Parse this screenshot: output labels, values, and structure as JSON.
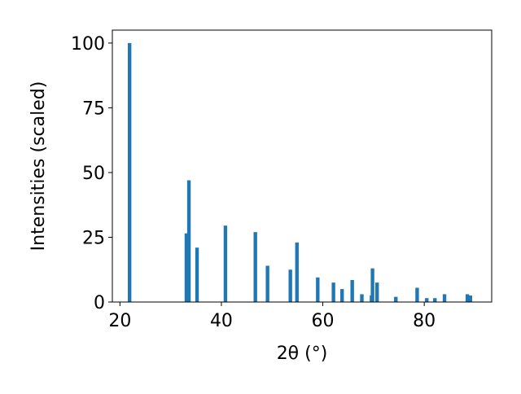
{
  "chart_data": {
    "type": "bar",
    "xlabel": "2θ (°)",
    "ylabel": "Intensities (scaled)",
    "x": [
      21.9,
      33.1,
      33.6,
      35.2,
      40.8,
      46.7,
      49.1,
      53.6,
      54.9,
      59.0,
      62.1,
      63.8,
      65.8,
      67.7,
      69.6,
      69.8,
      70.7,
      74.4,
      78.6,
      80.5,
      82.1,
      84.0,
      88.5,
      89.1
    ],
    "values": [
      100,
      26.5,
      47,
      21,
      29.5,
      27,
      14,
      12.5,
      23,
      9.5,
      7.5,
      5,
      8.5,
      3,
      2.5,
      13,
      7.5,
      2,
      5.5,
      1.5,
      1.5,
      3,
      3,
      2.5
    ],
    "color": "#1f77b4",
    "xlim": [
      18.5,
      93.3
    ],
    "ylim": [
      0,
      105
    ],
    "xticks": [
      20,
      40,
      60,
      80
    ],
    "yticks": [
      0,
      25,
      50,
      75,
      100
    ]
  }
}
